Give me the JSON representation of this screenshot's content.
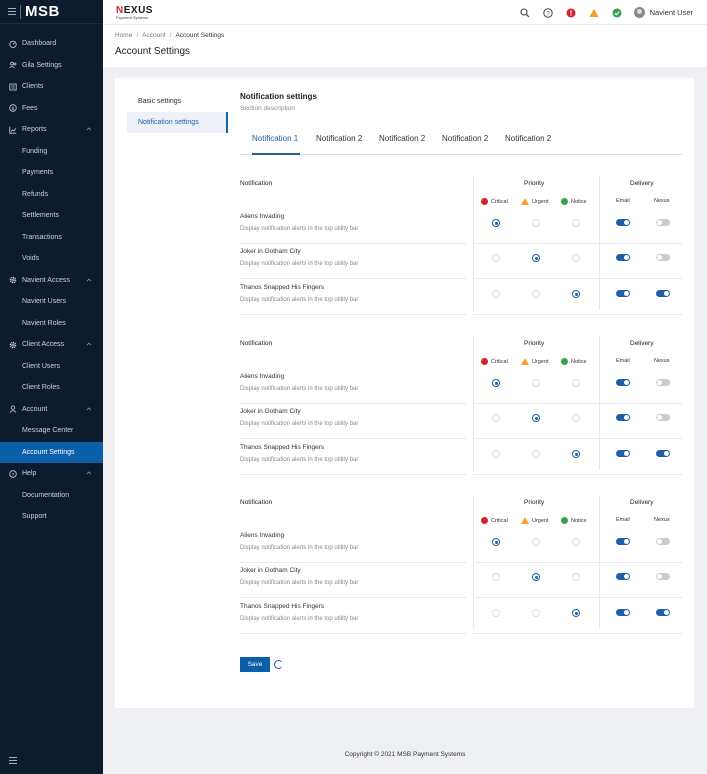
{
  "brand": {
    "title": "MSB"
  },
  "sidebar": {
    "items": [
      {
        "label": "Dashboard",
        "icon": "dashboard-icon",
        "type": "top"
      },
      {
        "label": "Gila Settings",
        "icon": "users-icon",
        "type": "top"
      },
      {
        "label": "Clients",
        "icon": "clients-icon",
        "type": "top"
      },
      {
        "label": "Fees",
        "icon": "fees-icon",
        "type": "top"
      },
      {
        "label": "Reports",
        "icon": "reports-icon",
        "type": "top",
        "expanded": true
      },
      {
        "label": "Funding",
        "type": "sub"
      },
      {
        "label": "Payments",
        "type": "sub"
      },
      {
        "label": "Refunds",
        "type": "sub"
      },
      {
        "label": "Settlements",
        "type": "sub"
      },
      {
        "label": "Transactions",
        "type": "sub"
      },
      {
        "label": "Voids",
        "type": "sub"
      },
      {
        "label": "Navient Access",
        "icon": "gear-icon",
        "type": "top",
        "expanded": true
      },
      {
        "label": "Navient Users",
        "type": "sub"
      },
      {
        "label": "Navient Roles",
        "type": "sub"
      },
      {
        "label": "Client Access",
        "icon": "gear-icon",
        "type": "top",
        "expanded": true
      },
      {
        "label": "Client Users",
        "type": "sub"
      },
      {
        "label": "Client Roles",
        "type": "sub"
      },
      {
        "label": "Account",
        "icon": "user-icon",
        "type": "top",
        "expanded": true
      },
      {
        "label": "Message Center",
        "type": "sub"
      },
      {
        "label": "Account Settings",
        "type": "sub",
        "active": true
      },
      {
        "label": "Help",
        "icon": "help-icon",
        "type": "top",
        "expanded": true
      },
      {
        "label": "Documentation",
        "type": "sub"
      },
      {
        "label": "Support",
        "type": "sub"
      }
    ]
  },
  "topbar": {
    "logo_main": "EXUS",
    "logo_n": "N",
    "logo_sub": "Payment Systems",
    "user_name": "Navient User"
  },
  "breadcrumb": {
    "home": "Home",
    "account": "Account",
    "current": "Account Settings"
  },
  "page_title": "Account Settings",
  "settings_nav": {
    "basic": "Basic settings",
    "notification": "Notification settings"
  },
  "section": {
    "title": "Notification settings",
    "description": "Section description"
  },
  "tabs": [
    "Notification 1",
    "Notification 2",
    "Notification 2",
    "Notification 2",
    "Notification 2"
  ],
  "table_headers": {
    "notification": "Notification",
    "priority": "Priority",
    "delivery": "Delivery",
    "critical": "Critical",
    "urgent": "Urgent",
    "notice": "Notice",
    "email": "Email",
    "nexus": "Nexus"
  },
  "tables": [
    {
      "rows": [
        {
          "name": "Aliens Invading",
          "desc": "Display notification alerts in the top utility bar",
          "priority": "critical",
          "email": true,
          "nexus": false
        },
        {
          "name": "Joker in Gotham City",
          "desc": "Display notification alerts in the top utility bar",
          "priority": "urgent",
          "email": true,
          "nexus": false
        },
        {
          "name": "Thanos Snapped His Fingers",
          "desc": "Display notification alerts in the top utility bar",
          "priority": "notice",
          "email": true,
          "nexus": true
        }
      ]
    },
    {
      "rows": [
        {
          "name": "Aliens Invading",
          "desc": "Display notification alerts in the top utility bar",
          "priority": "critical",
          "email": true,
          "nexus": false
        },
        {
          "name": "Joker in Gotham City",
          "desc": "Display notification alerts in the top utility bar",
          "priority": "urgent",
          "email": true,
          "nexus": false
        },
        {
          "name": "Thanos Snapped His Fingers",
          "desc": "Display notification alerts in the top utility bar",
          "priority": "notice",
          "email": true,
          "nexus": true
        }
      ]
    },
    {
      "rows": [
        {
          "name": "Aliens Invading",
          "desc": "Display notification alerts in the top utility bar",
          "priority": "critical",
          "email": true,
          "nexus": false
        },
        {
          "name": "Joker in Gotham City",
          "desc": "Display notification alerts in the top utility bar",
          "priority": "urgent",
          "email": true,
          "nexus": false
        },
        {
          "name": "Thanos Snapped His Fingers",
          "desc": "Display notification alerts in the top utility bar",
          "priority": "notice",
          "email": true,
          "nexus": true
        }
      ]
    }
  ],
  "save_label": "Save",
  "footer": "Copyright © 2021 MSB Payment Systems",
  "colors": {
    "sidebar": "#0d1b2e",
    "accent": "#1f5fa6",
    "active_nav": "#0b5ea8",
    "critical": "#d4232b",
    "urgent": "#f2a22c",
    "notice": "#3aa14a"
  }
}
